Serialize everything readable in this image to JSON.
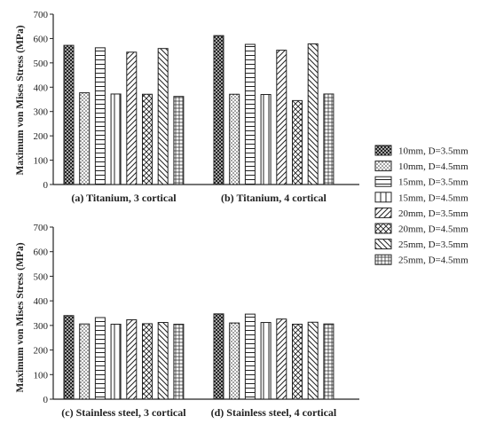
{
  "chart_data": {
    "type": "bar",
    "ylabel": "Maximum von Mises Stress (MPa)",
    "ylim": [
      0,
      700
    ],
    "yticks": [
      0,
      100,
      200,
      300,
      400,
      500,
      600,
      700
    ],
    "grid": false,
    "legend_position": "right",
    "series_names": [
      "10mm, D=3.5mm",
      "10mm, D=4.5mm",
      "15mm, D=3.5mm",
      "15mm, D=4.5mm",
      "20mm, D=3.5mm",
      "20mm, D=4.5mm",
      "25mm, D=3.5mm",
      "25mm, D=4.5mm"
    ],
    "patterns": [
      "crosshatch-dense",
      "dots",
      "horizontal-lines",
      "vertical-lines",
      "diagonal-right",
      "crosshatch",
      "diagonal-left",
      "grid"
    ],
    "panels": [
      {
        "caption": "(a) Titanium, 3 cortical",
        "group": "Titanium",
        "values": [
          572,
          377,
          562,
          372,
          544,
          371,
          559,
          362
        ]
      },
      {
        "caption": "(b) Titanium, 4 cortical",
        "group": "Titanium",
        "values": [
          612,
          371,
          576,
          370,
          552,
          345,
          578,
          372
        ]
      },
      {
        "caption": "(c) Stainless steel, 3 cortical",
        "group": "Stainless steel",
        "values": [
          340,
          306,
          332,
          305,
          323,
          307,
          312,
          305
        ]
      },
      {
        "caption": "(d) Stainless steel, 4 cortical",
        "group": "Stainless steel",
        "values": [
          347,
          310,
          346,
          312,
          326,
          305,
          313,
          306
        ]
      }
    ]
  }
}
